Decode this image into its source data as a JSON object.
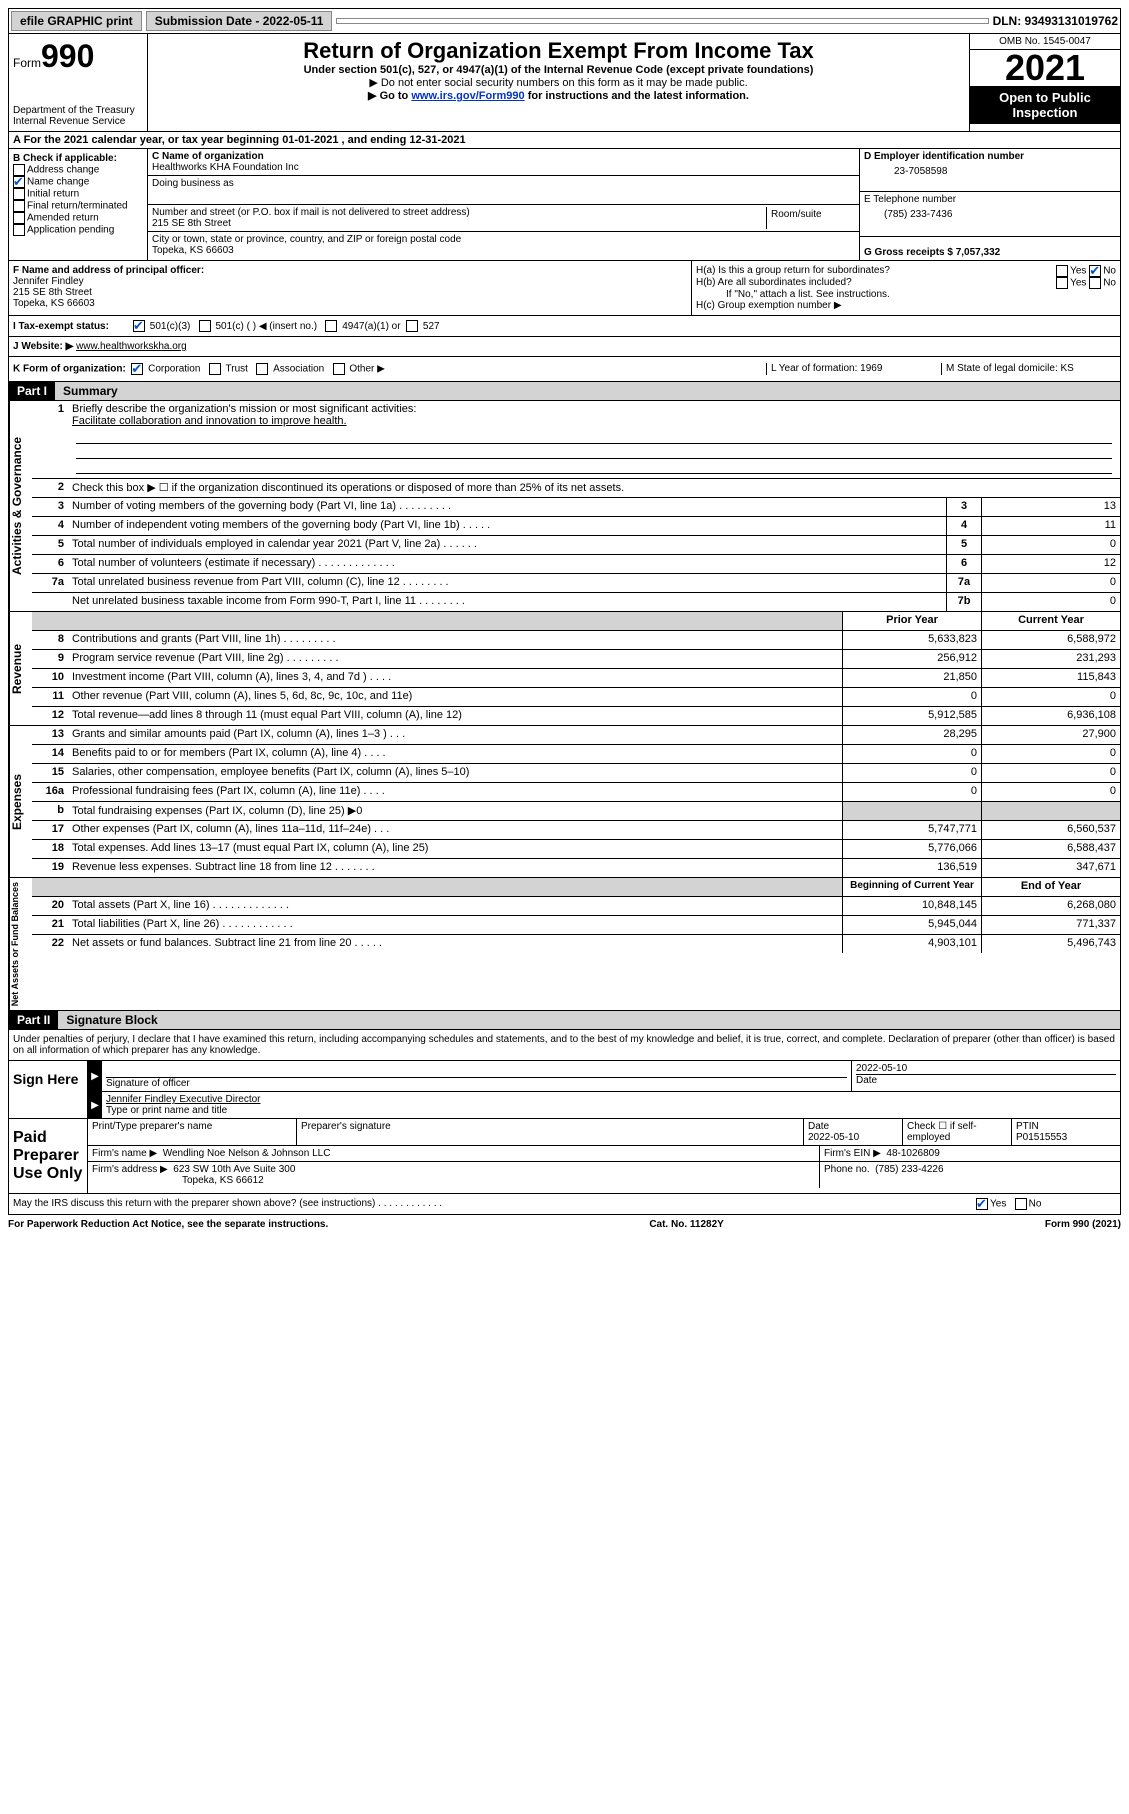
{
  "topbar": {
    "efile": "efile GRAPHIC print",
    "submission_label": "Submission Date - 2022-05-11",
    "dln": "DLN: 93493131019762"
  },
  "header": {
    "form_word": "Form",
    "form_num": "990",
    "dept": "Department of the Treasury\nInternal Revenue Service",
    "title": "Return of Organization Exempt From Income Tax",
    "sub1": "Under section 501(c), 527, or 4947(a)(1) of the Internal Revenue Code (except private foundations)",
    "sub2": "▶ Do not enter social security numbers on this form as it may be made public.",
    "sub3_pre": "▶ Go to ",
    "sub3_link": "www.irs.gov/Form990",
    "sub3_post": " for instructions and the latest information.",
    "omb": "OMB No. 1545-0047",
    "year": "2021",
    "open": "Open to Public Inspection"
  },
  "row_a": "A For the 2021 calendar year, or tax year beginning 01-01-2021    , and ending 12-31-2021",
  "section_b": {
    "label": "B Check if applicable:",
    "opts": [
      "Address change",
      "Name change",
      "Initial return",
      "Final return/terminated",
      "Amended return",
      "Application pending"
    ],
    "checked_idx": 1,
    "c_label": "C Name of organization",
    "c_name": "Healthworks KHA Foundation Inc",
    "dba_label": "Doing business as",
    "addr_label": "Number and street (or P.O. box if mail is not delivered to street address)",
    "room_label": "Room/suite",
    "addr": "215 SE 8th Street",
    "city_label": "City or town, state or province, country, and ZIP or foreign postal code",
    "city": "Topeka, KS  66603",
    "d_label": "D Employer identification number",
    "d_val": "23-7058598",
    "e_label": "E Telephone number",
    "e_val": "(785) 233-7436",
    "g_label": "G Gross receipts $ 7,057,332"
  },
  "section_fh": {
    "f_label": "F Name and address of principal officer:",
    "f_name": "Jennifer Findley",
    "f_addr1": "215 SE 8th Street",
    "f_addr2": "Topeka, KS  66603",
    "ha": "H(a)  Is this a group return for subordinates?",
    "hb": "H(b)  Are all subordinates included?",
    "hb_note": "If \"No,\" attach a list. See instructions.",
    "hc": "H(c)  Group exemption number ▶",
    "yes": "Yes",
    "no": "No"
  },
  "section_i": {
    "label": "I   Tax-exempt status:",
    "opt1": "501(c)(3)",
    "opt2": "501(c) (  ) ◀ (insert no.)",
    "opt3": "4947(a)(1) or",
    "opt4": "527"
  },
  "section_j": {
    "label": "J   Website: ▶ ",
    "val": "www.healthworkskha.org"
  },
  "section_k": {
    "label": "K Form of organization:",
    "opts": [
      "Corporation",
      "Trust",
      "Association",
      "Other ▶"
    ],
    "l_label": "L Year of formation: 1969",
    "m_label": "M State of legal domicile: KS"
  },
  "parts": {
    "p1": "Part I",
    "p1_title": "Summary",
    "p2": "Part II",
    "p2_title": "Signature Block"
  },
  "summary": {
    "l1": "Briefly describe the organization's mission or most significant activities:",
    "l1_val": "Facilitate collaboration and innovation to improve health.",
    "l2": "Check this box ▶ ☐  if the organization discontinued its operations or disposed of more than 25% of its net assets.",
    "lines_gov": [
      {
        "n": "3",
        "d": "Number of voting members of the governing body (Part VI, line 1a)  .   .   .   .   .   .   .   .   .",
        "b": "3",
        "v": "13"
      },
      {
        "n": "4",
        "d": "Number of independent voting members of the governing body (Part VI, line 1b)   .   .   .   .   .",
        "b": "4",
        "v": "11"
      },
      {
        "n": "5",
        "d": "Total number of individuals employed in calendar year 2021 (Part V, line 2a)   .   .   .   .   .   .",
        "b": "5",
        "v": "0"
      },
      {
        "n": "6",
        "d": "Total number of volunteers (estimate if necessary)   .   .   .   .   .   .   .   .   .   .   .   .   .",
        "b": "6",
        "v": "12"
      },
      {
        "n": "7a",
        "d": "Total unrelated business revenue from Part VIII, column (C), line 12   .   .   .   .   .   .   .   .",
        "b": "7a",
        "v": "0"
      },
      {
        "n": "",
        "d": "Net unrelated business taxable income from Form 990-T, Part I, line 11  .   .   .   .   .   .   .   .",
        "b": "7b",
        "v": "0"
      }
    ],
    "col_prior": "Prior Year",
    "col_curr": "Current Year",
    "revenue": [
      {
        "n": "8",
        "d": "Contributions and grants (Part VIII, line 1h)   .   .   .   .   .   .   .   .   .",
        "p": "5,633,823",
        "c": "6,588,972"
      },
      {
        "n": "9",
        "d": "Program service revenue (Part VIII, line 2g)   .   .   .   .   .   .   .   .   .",
        "p": "256,912",
        "c": "231,293"
      },
      {
        "n": "10",
        "d": "Investment income (Part VIII, column (A), lines 3, 4, and 7d )   .   .   .   .",
        "p": "21,850",
        "c": "115,843"
      },
      {
        "n": "11",
        "d": "Other revenue (Part VIII, column (A), lines 5, 6d, 8c, 9c, 10c, and 11e)",
        "p": "0",
        "c": "0"
      },
      {
        "n": "12",
        "d": "Total revenue—add lines 8 through 11 (must equal Part VIII, column (A), line 12)",
        "p": "5,912,585",
        "c": "6,936,108"
      }
    ],
    "expenses": [
      {
        "n": "13",
        "d": "Grants and similar amounts paid (Part IX, column (A), lines 1–3 )   .   .   .",
        "p": "28,295",
        "c": "27,900"
      },
      {
        "n": "14",
        "d": "Benefits paid to or for members (Part IX, column (A), line 4)  .   .   .   .",
        "p": "0",
        "c": "0"
      },
      {
        "n": "15",
        "d": "Salaries, other compensation, employee benefits (Part IX, column (A), lines 5–10)",
        "p": "0",
        "c": "0"
      },
      {
        "n": "16a",
        "d": "Professional fundraising fees (Part IX, column (A), line 11e)   .   .   .   .",
        "p": "0",
        "c": "0"
      },
      {
        "n": "b",
        "d": "Total fundraising expenses (Part IX, column (D), line 25) ▶0",
        "p": "",
        "c": "",
        "shaded": true
      },
      {
        "n": "17",
        "d": "Other expenses (Part IX, column (A), lines 11a–11d, 11f–24e)   .   .   .",
        "p": "5,747,771",
        "c": "6,560,537"
      },
      {
        "n": "18",
        "d": "Total expenses. Add lines 13–17 (must equal Part IX, column (A), line 25)",
        "p": "5,776,066",
        "c": "6,588,437"
      },
      {
        "n": "19",
        "d": "Revenue less expenses. Subtract line 18 from line 12 .   .   .   .   .   .   .",
        "p": "136,519",
        "c": "347,671"
      }
    ],
    "col_begin": "Beginning of Current Year",
    "col_end": "End of Year",
    "net": [
      {
        "n": "20",
        "d": "Total assets (Part X, line 16)   .   .   .   .   .   .   .   .   .   .   .   .   .",
        "p": "10,848,145",
        "c": "6,268,080"
      },
      {
        "n": "21",
        "d": "Total liabilities (Part X, line 26)   .   .   .   .   .   .   .   .   .   .   .   .",
        "p": "5,945,044",
        "c": "771,337"
      },
      {
        "n": "22",
        "d": "Net assets or fund balances. Subtract line 21 from line 20 .   .   .   .   .",
        "p": "4,903,101",
        "c": "5,496,743"
      }
    ]
  },
  "side_labels": {
    "gov": "Activities & Governance",
    "rev": "Revenue",
    "exp": "Expenses",
    "net": "Net Assets or Fund Balances"
  },
  "sig": {
    "penalty": "Under penalties of perjury, I declare that I have examined this return, including accompanying schedules and statements, and to the best of my knowledge and belief, it is true, correct, and complete. Declaration of preparer (other than officer) is based on all information of which preparer has any knowledge.",
    "sign_here": "Sign Here",
    "sig_of_officer": "Signature of officer",
    "date_label": "Date",
    "date_val": "2022-05-10",
    "name_title": "Jennifer Findley  Executive Director",
    "name_title_label": "Type or print name and title",
    "paid": "Paid Preparer Use Only",
    "prep_name_label": "Print/Type preparer's name",
    "prep_sig_label": "Preparer's signature",
    "prep_date_label": "Date",
    "prep_date": "2022-05-10",
    "check_label": "Check ☐ if self-employed",
    "ptin_label": "PTIN",
    "ptin": "P01515553",
    "firm_name_label": "Firm's name    ▶",
    "firm_name": "Wendling Noe Nelson & Johnson LLC",
    "firm_ein_label": "Firm's EIN ▶",
    "firm_ein": "48-1026809",
    "firm_addr_label": "Firm's address ▶",
    "firm_addr1": "623 SW 10th Ave Suite 300",
    "firm_addr2": "Topeka, KS  66612",
    "phone_label": "Phone no.",
    "phone": "(785) 233-4226",
    "may_irs": "May the IRS discuss this return with the preparer shown above? (see instructions)   .   .   .   .   .   .   .   .   .   .   .   .",
    "yes": "Yes",
    "no": "No"
  },
  "footer": {
    "left": "For Paperwork Reduction Act Notice, see the separate instructions.",
    "mid": "Cat. No. 11282Y",
    "right": "Form 990 (2021)"
  }
}
